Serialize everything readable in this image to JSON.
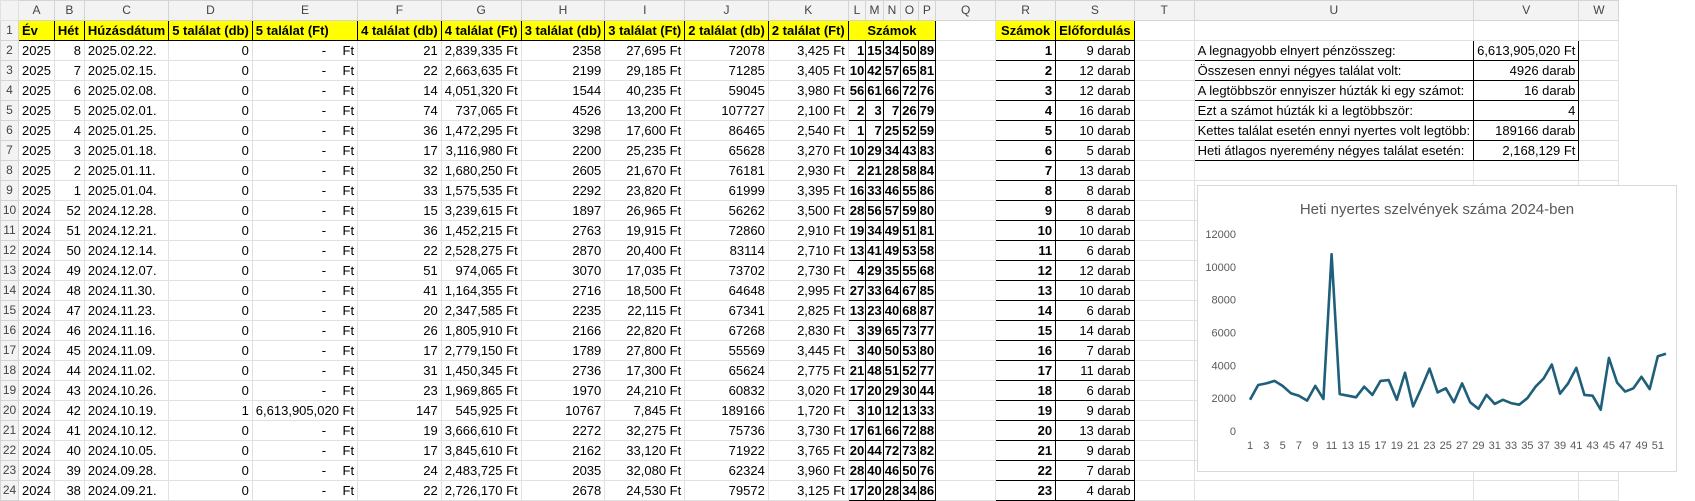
{
  "columns": [
    "A",
    "B",
    "C",
    "D",
    "E",
    "F",
    "G",
    "H",
    "I",
    "J",
    "K",
    "L",
    "M",
    "N",
    "O",
    "P",
    "Q",
    "R",
    "S",
    "T",
    "U",
    "V",
    "W"
  ],
  "headers": {
    "ev": "Év",
    "het": "Hét",
    "datum": "Húzásdátum",
    "t5db": "5 találat (db)",
    "t5ft": "5 találat (Ft)",
    "t4db": "4 találat (db)",
    "t4ft": "4 találat (Ft)",
    "t3db": "3 találat (db)",
    "t3ft": "3 találat (Ft)",
    "t2db": "2 találat (db)",
    "t2ft": "2 találat (Ft)",
    "szamok": "Számok",
    "szamok2": "Számok",
    "elofordulas": "Előfordulás"
  },
  "ft_unit": "Ft",
  "dash": "-",
  "rows": [
    {
      "r": "2",
      "ev": "2025",
      "het": "8",
      "datum": "2025.02.22.",
      "t5db": "0",
      "t5ft": "",
      "t4db": "21",
      "t4ft": "2,839,335 Ft",
      "t3db": "2358",
      "t3ft": "27,695 Ft",
      "t2db": "72078",
      "t2ft": "3,425 Ft",
      "n": [
        "1",
        "15",
        "34",
        "50",
        "89"
      ],
      "sz": "1",
      "el": "9 darab"
    },
    {
      "r": "3",
      "ev": "2025",
      "het": "7",
      "datum": "2025.02.15.",
      "t5db": "0",
      "t5ft": "",
      "t4db": "22",
      "t4ft": "2,663,635 Ft",
      "t3db": "2199",
      "t3ft": "29,185 Ft",
      "t2db": "71285",
      "t2ft": "3,405 Ft",
      "n": [
        "10",
        "42",
        "57",
        "65",
        "81"
      ],
      "sz": "2",
      "el": "12 darab"
    },
    {
      "r": "4",
      "ev": "2025",
      "het": "6",
      "datum": "2025.02.08.",
      "t5db": "0",
      "t5ft": "",
      "t4db": "14",
      "t4ft": "4,051,320 Ft",
      "t3db": "1544",
      "t3ft": "40,235 Ft",
      "t2db": "59045",
      "t2ft": "3,980 Ft",
      "n": [
        "56",
        "61",
        "66",
        "72",
        "76"
      ],
      "sz": "3",
      "el": "12 darab"
    },
    {
      "r": "5",
      "ev": "2025",
      "het": "5",
      "datum": "2025.02.01.",
      "t5db": "0",
      "t5ft": "",
      "t4db": "74",
      "t4ft": "737,065 Ft",
      "t3db": "4526",
      "t3ft": "13,200 Ft",
      "t2db": "107727",
      "t2ft": "2,100 Ft",
      "n": [
        "2",
        "3",
        "7",
        "26",
        "79"
      ],
      "sz": "4",
      "el": "16 darab"
    },
    {
      "r": "6",
      "ev": "2025",
      "het": "4",
      "datum": "2025.01.25.",
      "t5db": "0",
      "t5ft": "",
      "t4db": "36",
      "t4ft": "1,472,295 Ft",
      "t3db": "3298",
      "t3ft": "17,600 Ft",
      "t2db": "86465",
      "t2ft": "2,540 Ft",
      "n": [
        "1",
        "7",
        "25",
        "52",
        "59"
      ],
      "sz": "5",
      "el": "10 darab"
    },
    {
      "r": "7",
      "ev": "2025",
      "het": "3",
      "datum": "2025.01.18.",
      "t5db": "0",
      "t5ft": "",
      "t4db": "17",
      "t4ft": "3,116,980 Ft",
      "t3db": "2200",
      "t3ft": "25,235 Ft",
      "t2db": "65628",
      "t2ft": "3,270 Ft",
      "n": [
        "10",
        "29",
        "34",
        "43",
        "83"
      ],
      "sz": "6",
      "el": "5 darab"
    },
    {
      "r": "8",
      "ev": "2025",
      "het": "2",
      "datum": "2025.01.11.",
      "t5db": "0",
      "t5ft": "",
      "t4db": "32",
      "t4ft": "1,680,250 Ft",
      "t3db": "2605",
      "t3ft": "21,670 Ft",
      "t2db": "76181",
      "t2ft": "2,930 Ft",
      "n": [
        "2",
        "21",
        "28",
        "58",
        "84"
      ],
      "sz": "7",
      "el": "13 darab"
    },
    {
      "r": "9",
      "ev": "2025",
      "het": "1",
      "datum": "2025.01.04.",
      "t5db": "0",
      "t5ft": "",
      "t4db": "33",
      "t4ft": "1,575,535 Ft",
      "t3db": "2292",
      "t3ft": "23,820 Ft",
      "t2db": "61999",
      "t2ft": "3,395 Ft",
      "n": [
        "16",
        "33",
        "46",
        "55",
        "86"
      ],
      "sz": "8",
      "el": "8 darab"
    },
    {
      "r": "10",
      "ev": "2024",
      "het": "52",
      "datum": "2024.12.28.",
      "t5db": "0",
      "t5ft": "",
      "t4db": "15",
      "t4ft": "3,239,615 Ft",
      "t3db": "1897",
      "t3ft": "26,965 Ft",
      "t2db": "56262",
      "t2ft": "3,500 Ft",
      "n": [
        "28",
        "56",
        "57",
        "59",
        "80"
      ],
      "sz": "9",
      "el": "8 darab"
    },
    {
      "r": "11",
      "ev": "2024",
      "het": "51",
      "datum": "2024.12.21.",
      "t5db": "0",
      "t5ft": "",
      "t4db": "36",
      "t4ft": "1,452,215 Ft",
      "t3db": "2763",
      "t3ft": "19,915 Ft",
      "t2db": "72860",
      "t2ft": "2,910 Ft",
      "n": [
        "19",
        "34",
        "49",
        "51",
        "81"
      ],
      "sz": "10",
      "el": "10 darab"
    },
    {
      "r": "12",
      "ev": "2024",
      "het": "50",
      "datum": "2024.12.14.",
      "t5db": "0",
      "t5ft": "",
      "t4db": "22",
      "t4ft": "2,528,275 Ft",
      "t3db": "2870",
      "t3ft": "20,400 Ft",
      "t2db": "83114",
      "t2ft": "2,710 Ft",
      "n": [
        "13",
        "41",
        "49",
        "53",
        "58"
      ],
      "sz": "11",
      "el": "6 darab"
    },
    {
      "r": "13",
      "ev": "2024",
      "het": "49",
      "datum": "2024.12.07.",
      "t5db": "0",
      "t5ft": "",
      "t4db": "51",
      "t4ft": "974,065 Ft",
      "t3db": "3070",
      "t3ft": "17,035 Ft",
      "t2db": "73702",
      "t2ft": "2,730 Ft",
      "n": [
        "4",
        "29",
        "35",
        "55",
        "68"
      ],
      "sz": "12",
      "el": "12 darab"
    },
    {
      "r": "14",
      "ev": "2024",
      "het": "48",
      "datum": "2024.11.30.",
      "t5db": "0",
      "t5ft": "",
      "t4db": "41",
      "t4ft": "1,164,355 Ft",
      "t3db": "2716",
      "t3ft": "18,500 Ft",
      "t2db": "64648",
      "t2ft": "2,995 Ft",
      "n": [
        "27",
        "33",
        "64",
        "67",
        "85"
      ],
      "sz": "13",
      "el": "10 darab"
    },
    {
      "r": "15",
      "ev": "2024",
      "het": "47",
      "datum": "2024.11.23.",
      "t5db": "0",
      "t5ft": "",
      "t4db": "20",
      "t4ft": "2,347,585 Ft",
      "t3db": "2235",
      "t3ft": "22,115 Ft",
      "t2db": "67341",
      "t2ft": "2,825 Ft",
      "n": [
        "13",
        "23",
        "40",
        "68",
        "87"
      ],
      "sz": "14",
      "el": "6 darab"
    },
    {
      "r": "16",
      "ev": "2024",
      "het": "46",
      "datum": "2024.11.16.",
      "t5db": "0",
      "t5ft": "",
      "t4db": "26",
      "t4ft": "1,805,910 Ft",
      "t3db": "2166",
      "t3ft": "22,820 Ft",
      "t2db": "67268",
      "t2ft": "2,830 Ft",
      "n": [
        "3",
        "39",
        "65",
        "73",
        "77"
      ],
      "sz": "15",
      "el": "14 darab"
    },
    {
      "r": "17",
      "ev": "2024",
      "het": "45",
      "datum": "2024.11.09.",
      "t5db": "0",
      "t5ft": "",
      "t4db": "17",
      "t4ft": "2,779,150 Ft",
      "t3db": "1789",
      "t3ft": "27,800 Ft",
      "t2db": "55569",
      "t2ft": "3,445 Ft",
      "n": [
        "3",
        "40",
        "50",
        "53",
        "80"
      ],
      "sz": "16",
      "el": "7 darab"
    },
    {
      "r": "18",
      "ev": "2024",
      "het": "44",
      "datum": "2024.11.02.",
      "t5db": "0",
      "t5ft": "",
      "t4db": "31",
      "t4ft": "1,450,345 Ft",
      "t3db": "2736",
      "t3ft": "17,300 Ft",
      "t2db": "65624",
      "t2ft": "2,775 Ft",
      "n": [
        "21",
        "48",
        "51",
        "52",
        "77"
      ],
      "sz": "17",
      "el": "11 darab"
    },
    {
      "r": "19",
      "ev": "2024",
      "het": "43",
      "datum": "2024.10.26.",
      "t5db": "0",
      "t5ft": "",
      "t4db": "23",
      "t4ft": "1,969,865 Ft",
      "t3db": "1970",
      "t3ft": "24,210 Ft",
      "t2db": "60832",
      "t2ft": "3,020 Ft",
      "n": [
        "17",
        "20",
        "29",
        "30",
        "44"
      ],
      "sz": "18",
      "el": "6 darab"
    },
    {
      "r": "20",
      "ev": "2024",
      "het": "42",
      "datum": "2024.10.19.",
      "t5db": "1",
      "t5ft": "6,613,905,020 Ft",
      "t4db": "147",
      "t4ft": "545,925 Ft",
      "t3db": "10767",
      "t3ft": "7,845 Ft",
      "t2db": "189166",
      "t2ft": "1,720 Ft",
      "n": [
        "3",
        "10",
        "12",
        "13",
        "33"
      ],
      "sz": "19",
      "el": "9 darab"
    },
    {
      "r": "21",
      "ev": "2024",
      "het": "41",
      "datum": "2024.10.12.",
      "t5db": "0",
      "t5ft": "",
      "t4db": "19",
      "t4ft": "3,666,610 Ft",
      "t3db": "2272",
      "t3ft": "32,275 Ft",
      "t2db": "75736",
      "t2ft": "3,730 Ft",
      "n": [
        "17",
        "61",
        "66",
        "72",
        "88"
      ],
      "sz": "20",
      "el": "13 darab"
    },
    {
      "r": "22",
      "ev": "2024",
      "het": "40",
      "datum": "2024.10.05.",
      "t5db": "0",
      "t5ft": "",
      "t4db": "17",
      "t4ft": "3,845,610 Ft",
      "t3db": "2162",
      "t3ft": "33,120 Ft",
      "t2db": "71922",
      "t2ft": "3,765 Ft",
      "n": [
        "20",
        "44",
        "72",
        "73",
        "82"
      ],
      "sz": "21",
      "el": "9 darab"
    },
    {
      "r": "23",
      "ev": "2024",
      "het": "39",
      "datum": "2024.09.28.",
      "t5db": "0",
      "t5ft": "",
      "t4db": "24",
      "t4ft": "2,483,725 Ft",
      "t3db": "2035",
      "t3ft": "32,080 Ft",
      "t2db": "62324",
      "t2ft": "3,960 Ft",
      "n": [
        "28",
        "40",
        "46",
        "50",
        "76"
      ],
      "sz": "22",
      "el": "7 darab"
    },
    {
      "r": "24",
      "ev": "2024",
      "het": "38",
      "datum": "2024.09.21.",
      "t5db": "0",
      "t5ft": "",
      "t4db": "22",
      "t4ft": "2,726,170 Ft",
      "t3db": "2678",
      "t3ft": "24,530 Ft",
      "t2db": "79572",
      "t2ft": "3,125 Ft",
      "n": [
        "17",
        "20",
        "28",
        "34",
        "86"
      ],
      "sz": "23",
      "el": "4 darab"
    }
  ],
  "stats": [
    {
      "label": "A legnagyobb elnyert pénzösszeg:",
      "value": "6,613,905,020 Ft"
    },
    {
      "label": "Összesen ennyi négyes találat volt:",
      "value": "4926 darab"
    },
    {
      "label": " A legtöbbször ennyiszer húzták ki egy számot:",
      "value": "16 darab"
    },
    {
      "label": "Ezt a számot húzták ki a legtöbbször:",
      "value": "4"
    },
    {
      "label": "Kettes találat esetén ennyi nyertes volt legtöbb:",
      "value": "189166 darab"
    },
    {
      "label": "Heti átlagos nyeremény négyes találat esetén:",
      "value": "2,168,129 Ft"
    }
  ],
  "chart_data": {
    "type": "line",
    "title": "Heti nyertes szelvények száma 2024-ben",
    "xlabel": "",
    "ylabel": "",
    "ylim": [
      0,
      12000
    ],
    "yticks": [
      0,
      2000,
      4000,
      6000,
      8000,
      10000,
      12000
    ],
    "x": [
      1,
      2,
      3,
      4,
      5,
      6,
      7,
      8,
      9,
      10,
      11,
      12,
      13,
      14,
      15,
      16,
      17,
      18,
      19,
      20,
      21,
      22,
      23,
      24,
      25,
      26,
      27,
      28,
      29,
      30,
      31,
      32,
      33,
      34,
      35,
      36,
      37,
      38,
      39,
      40,
      41,
      42,
      43,
      44,
      45,
      46,
      47,
      48,
      49,
      50,
      51,
      52
    ],
    "xtick_labels": [
      "1",
      "3",
      "5",
      "7",
      "9",
      "11",
      "13",
      "15",
      "17",
      "19",
      "21",
      "23",
      "25",
      "27",
      "29",
      "31",
      "33",
      "35",
      "37",
      "39",
      "41",
      "43",
      "45",
      "47",
      "49",
      "51"
    ],
    "series": [
      {
        "color": "#1f5f7a",
        "values": [
          1900,
          2800,
          2900,
          3050,
          2750,
          2300,
          2150,
          1850,
          2750,
          1950,
          10767,
          2250,
          2150,
          2050,
          2700,
          2200,
          3050,
          3100,
          1900,
          3550,
          1500,
          2600,
          3800,
          2350,
          2600,
          1750,
          2900,
          1750,
          1350,
          2200,
          1650,
          1900,
          1700,
          1600,
          2000,
          2700,
          3200,
          4050,
          2272,
          2900,
          3850,
          2200,
          2150,
          1300,
          4450,
          2950,
          2400,
          2600,
          3300,
          2550,
          4550,
          4700
        ]
      }
    ]
  }
}
